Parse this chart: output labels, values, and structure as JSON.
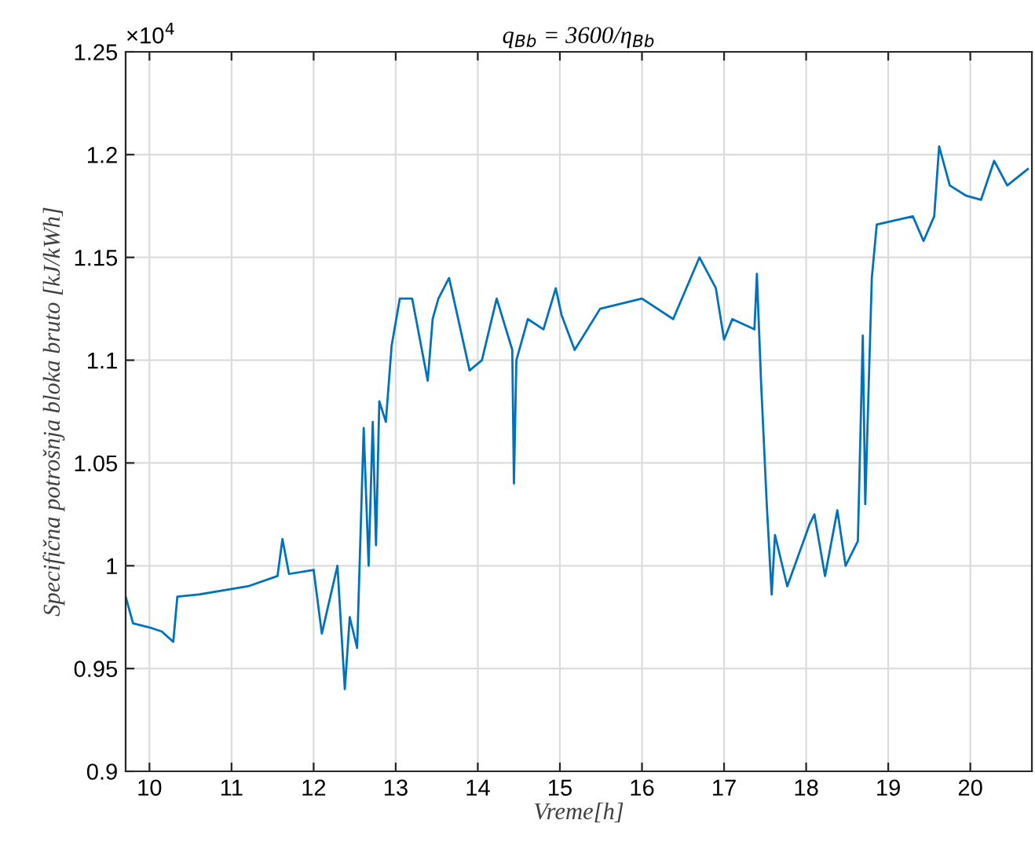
{
  "chart_data": {
    "type": "line",
    "title": "q$_{Bb}$ = 3600/η$_{Bb}$",
    "xlabel": "Vreme[h]",
    "ylabel": "Specifična potrošnja bloka bruto [kJ/kWh]",
    "annotations": [
      "×10$^{4}$"
    ],
    "x": [
      9.71,
      9.8,
      10.0,
      10.15,
      10.29,
      10.34,
      10.6,
      10.9,
      11.2,
      11.56,
      11.62,
      11.7,
      12.0,
      12.1,
      12.29,
      12.38,
      12.44,
      12.53,
      12.61,
      12.67,
      12.72,
      12.76,
      12.8,
      12.88,
      12.95,
      13.05,
      13.2,
      13.39,
      13.45,
      13.52,
      13.65,
      13.9,
      14.05,
      14.23,
      14.42,
      14.44,
      14.47,
      14.61,
      14.8,
      14.95,
      15.02,
      15.18,
      15.49,
      16.0,
      16.38,
      16.7,
      16.9,
      17.0,
      17.1,
      17.37,
      17.4,
      17.45,
      17.52,
      17.58,
      17.62,
      17.77,
      18.04,
      18.1,
      18.23,
      18.38,
      18.48,
      18.63,
      18.69,
      18.72,
      18.8,
      18.86,
      19.3,
      19.43,
      19.56,
      19.62,
      19.75,
      19.95,
      20.13,
      20.29,
      20.45,
      20.7
    ],
    "series": [
      {
        "color": "#0072bd",
        "values": [
          0.985,
          0.972,
          0.97,
          0.968,
          0.963,
          0.985,
          0.986,
          0.988,
          0.99,
          0.995,
          1.013,
          0.996,
          0.998,
          0.967,
          1.0,
          0.94,
          0.975,
          0.96,
          1.067,
          1.0,
          1.07,
          1.01,
          1.08,
          1.07,
          1.107,
          1.13,
          1.13,
          1.09,
          1.12,
          1.13,
          1.14,
          1.095,
          1.1,
          1.13,
          1.105,
          1.04,
          1.1,
          1.12,
          1.115,
          1.135,
          1.122,
          1.105,
          1.125,
          1.13,
          1.12,
          1.15,
          1.135,
          1.11,
          1.12,
          1.115,
          1.142,
          1.09,
          1.03,
          0.986,
          1.015,
          0.99,
          1.02,
          1.025,
          0.995,
          1.027,
          1.0,
          1.012,
          1.112,
          1.03,
          1.14,
          1.166,
          1.17,
          1.158,
          1.17,
          1.204,
          1.185,
          1.18,
          1.178,
          1.197,
          1.185,
          1.193
        ]
      }
    ],
    "xlim": [
      9.71,
      20.75
    ],
    "xticks": [
      10,
      11,
      12,
      13,
      14,
      15,
      16,
      17,
      18,
      19,
      20
    ],
    "ylim": [
      0.9,
      1.25
    ],
    "yticks": [
      0.9,
      0.95,
      1,
      1.05,
      1.1,
      1.15,
      1.2,
      1.25
    ],
    "grid": true,
    "marker": "none",
    "line_style": "solid"
  }
}
